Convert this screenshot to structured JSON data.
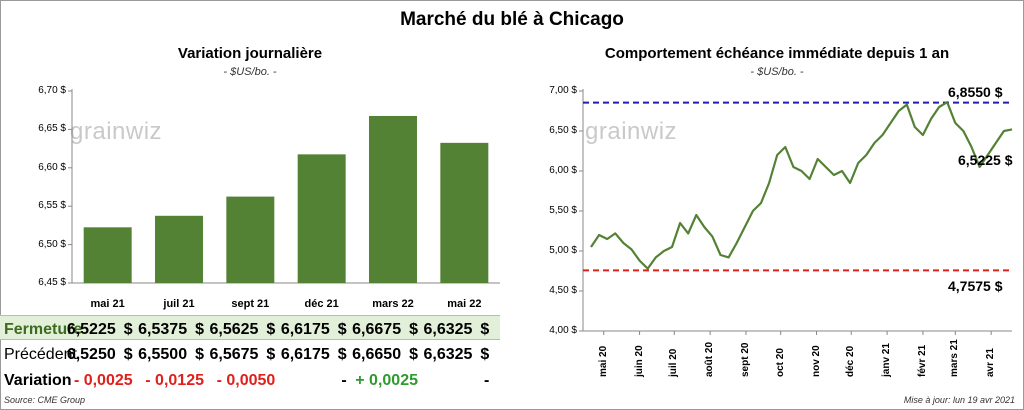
{
  "title": "Marché du blé à Chicago",
  "footer": {
    "source": "Source: CME Group",
    "updated": "Mise à jour: lun 19 avr 2021"
  },
  "watermark": "grainwiz",
  "left": {
    "title": "Variation  journalière",
    "subtitle": "- $US/bo. -",
    "yticks": [
      "6,45 $",
      "6,50 $",
      "6,55 $",
      "6,60 $",
      "6,65 $",
      "6,70 $"
    ],
    "table": {
      "row_labels": [
        "Fermeture",
        "Précédent",
        "Variation"
      ],
      "fermeture": [
        "6,5225",
        "6,5375",
        "6,5625",
        "6,6175",
        "6,6675",
        "6,6325"
      ],
      "precedent": [
        "6,5250",
        "6,5500",
        "6,5675",
        "6,6175",
        "6,6650",
        "6,6325"
      ],
      "variation": [
        "- 0,0025",
        "- 0,0125",
        "- 0,0050",
        "-",
        "+ 0,0025",
        "-"
      ],
      "dollar": "$"
    }
  },
  "right": {
    "title": "Comportement  échéance immédiate depuis 1 an",
    "subtitle": "- $US/bo. -",
    "yticks": [
      "4,00 $",
      "4,50 $",
      "5,00 $",
      "5,50 $",
      "6,00 $",
      "6,50 $",
      "7,00 $"
    ],
    "xticks": [
      "mai 20",
      "juin 20",
      "juil 20",
      "août 20",
      "sept 20",
      "oct 20",
      "nov 20",
      "déc 20",
      "janv 21",
      "févr 21",
      "mars 21",
      "avr 21"
    ],
    "high_label": "6,8550 $",
    "low_label": "4,7575 $",
    "last_label": "6,5225 $"
  },
  "colors": {
    "bar": "#548235",
    "line": "#548235",
    "high": "#1f1fb4",
    "low": "#e0201a",
    "neg": "#e0201a",
    "pos": "#2e9b2e"
  },
  "chart_data": [
    {
      "type": "bar",
      "title": "Variation  journalière",
      "subtitle": "- $US/bo. -",
      "categories": [
        "mai 21",
        "juil 21",
        "sept 21",
        "déc 21",
        "mars 22",
        "mai 22"
      ],
      "values": [
        6.5225,
        6.5375,
        6.5625,
        6.6175,
        6.6675,
        6.6325
      ],
      "ylim": [
        6.45,
        6.7
      ],
      "grid": false
    },
    {
      "type": "line",
      "title": "Comportement  échéance immédiate depuis 1 an",
      "subtitle": "- $US/bo. -",
      "ylim": [
        4.0,
        7.0
      ],
      "x": [
        "2020-04-20",
        "2020-04-27",
        "2020-05-04",
        "2020-05-11",
        "2020-05-18",
        "2020-05-25",
        "2020-06-01",
        "2020-06-08",
        "2020-06-15",
        "2020-06-22",
        "2020-06-29",
        "2020-07-06",
        "2020-07-13",
        "2020-07-20",
        "2020-07-27",
        "2020-08-03",
        "2020-08-10",
        "2020-08-17",
        "2020-08-24",
        "2020-08-31",
        "2020-09-07",
        "2020-09-14",
        "2020-09-21",
        "2020-09-28",
        "2020-10-05",
        "2020-10-12",
        "2020-10-19",
        "2020-10-26",
        "2020-11-02",
        "2020-11-09",
        "2020-11-16",
        "2020-11-23",
        "2020-11-30",
        "2020-12-07",
        "2020-12-14",
        "2020-12-21",
        "2020-12-28",
        "2021-01-04",
        "2021-01-11",
        "2021-01-18",
        "2021-01-25",
        "2021-02-01",
        "2021-02-08",
        "2021-02-15",
        "2021-02-22",
        "2021-03-01",
        "2021-03-08",
        "2021-03-15",
        "2021-03-22",
        "2021-03-29",
        "2021-04-05",
        "2021-04-12",
        "2021-04-19"
      ],
      "values": [
        5.05,
        5.2,
        5.15,
        5.22,
        5.1,
        5.02,
        4.88,
        4.78,
        4.92,
        5.0,
        5.05,
        5.35,
        5.22,
        5.45,
        5.3,
        5.18,
        4.95,
        4.92,
        5.1,
        5.3,
        5.5,
        5.6,
        5.85,
        6.2,
        6.3,
        6.05,
        6.0,
        5.9,
        6.15,
        6.05,
        5.95,
        6.0,
        5.85,
        6.1,
        6.2,
        6.35,
        6.45,
        6.6,
        6.75,
        6.83,
        6.55,
        6.45,
        6.65,
        6.8,
        6.86,
        6.6,
        6.5,
        6.3,
        6.05,
        6.2,
        6.35,
        6.5,
        6.52
      ],
      "hlines": [
        {
          "name": "6,8550 $",
          "y": 6.855,
          "color": "#1f1fb4",
          "style": "dashed"
        },
        {
          "name": "4,7575 $",
          "y": 4.7575,
          "color": "#e0201a",
          "style": "dashed"
        }
      ],
      "xtick_labels": [
        "mai 20",
        "juin 20",
        "juil 20",
        "août 20",
        "sept 20",
        "oct 20",
        "nov 20",
        "déc 20",
        "janv 21",
        "févr 21",
        "mars 21",
        "avr 21"
      ],
      "grid": false
    }
  ]
}
